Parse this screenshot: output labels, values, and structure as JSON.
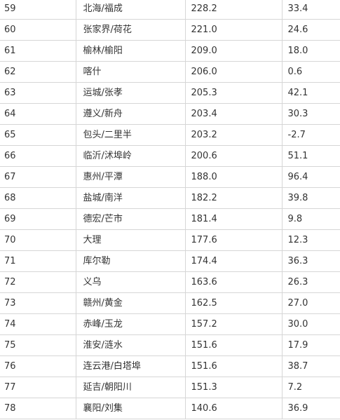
{
  "table": {
    "rows": [
      {
        "rank": "59",
        "city": "北海/福成",
        "value": "228.2",
        "growth": "33.4"
      },
      {
        "rank": "60",
        "city": "张家界/荷花",
        "value": "221.0",
        "growth": "24.6"
      },
      {
        "rank": "61",
        "city": "榆林/榆阳",
        "value": "209.0",
        "growth": "18.0"
      },
      {
        "rank": "62",
        "city": "喀什",
        "value": "206.0",
        "growth": "0.6"
      },
      {
        "rank": "63",
        "city": "运城/张孝",
        "value": "205.3",
        "growth": "42.1"
      },
      {
        "rank": "64",
        "city": "遵义/新舟",
        "value": "203.4",
        "growth": "30.3"
      },
      {
        "rank": "65",
        "city": "包头/二里半",
        "value": "203.2",
        "growth": "-2.7"
      },
      {
        "rank": "66",
        "city": "临沂/沭埠岭",
        "value": "200.6",
        "growth": "51.1"
      },
      {
        "rank": "67",
        "city": "惠州/平潭",
        "value": "188.0",
        "growth": "96.4"
      },
      {
        "rank": "68",
        "city": "盐城/南洋",
        "value": "182.2",
        "growth": "39.8"
      },
      {
        "rank": "69",
        "city": "德宏/芒市",
        "value": "181.4",
        "growth": "9.8"
      },
      {
        "rank": "70",
        "city": "大理",
        "value": "177.6",
        "growth": "12.3"
      },
      {
        "rank": "71",
        "city": "库尔勒",
        "value": "174.4",
        "growth": "36.3"
      },
      {
        "rank": "72",
        "city": "义乌",
        "value": "163.6",
        "growth": "26.3"
      },
      {
        "rank": "73",
        "city": "赣州/黄金",
        "value": "162.5",
        "growth": "27.0"
      },
      {
        "rank": "74",
        "city": "赤峰/玉龙",
        "value": "157.2",
        "growth": "30.0"
      },
      {
        "rank": "75",
        "city": "淮安/涟水",
        "value": "151.6",
        "growth": "17.9"
      },
      {
        "rank": "76",
        "city": "连云港/白塔埠",
        "value": "151.6",
        "growth": "38.7"
      },
      {
        "rank": "77",
        "city": "延吉/朝阳川",
        "value": "151.3",
        "growth": "7.2"
      },
      {
        "rank": "78",
        "city": "襄阳/刘集",
        "value": "140.6",
        "growth": "36.9"
      }
    ]
  }
}
